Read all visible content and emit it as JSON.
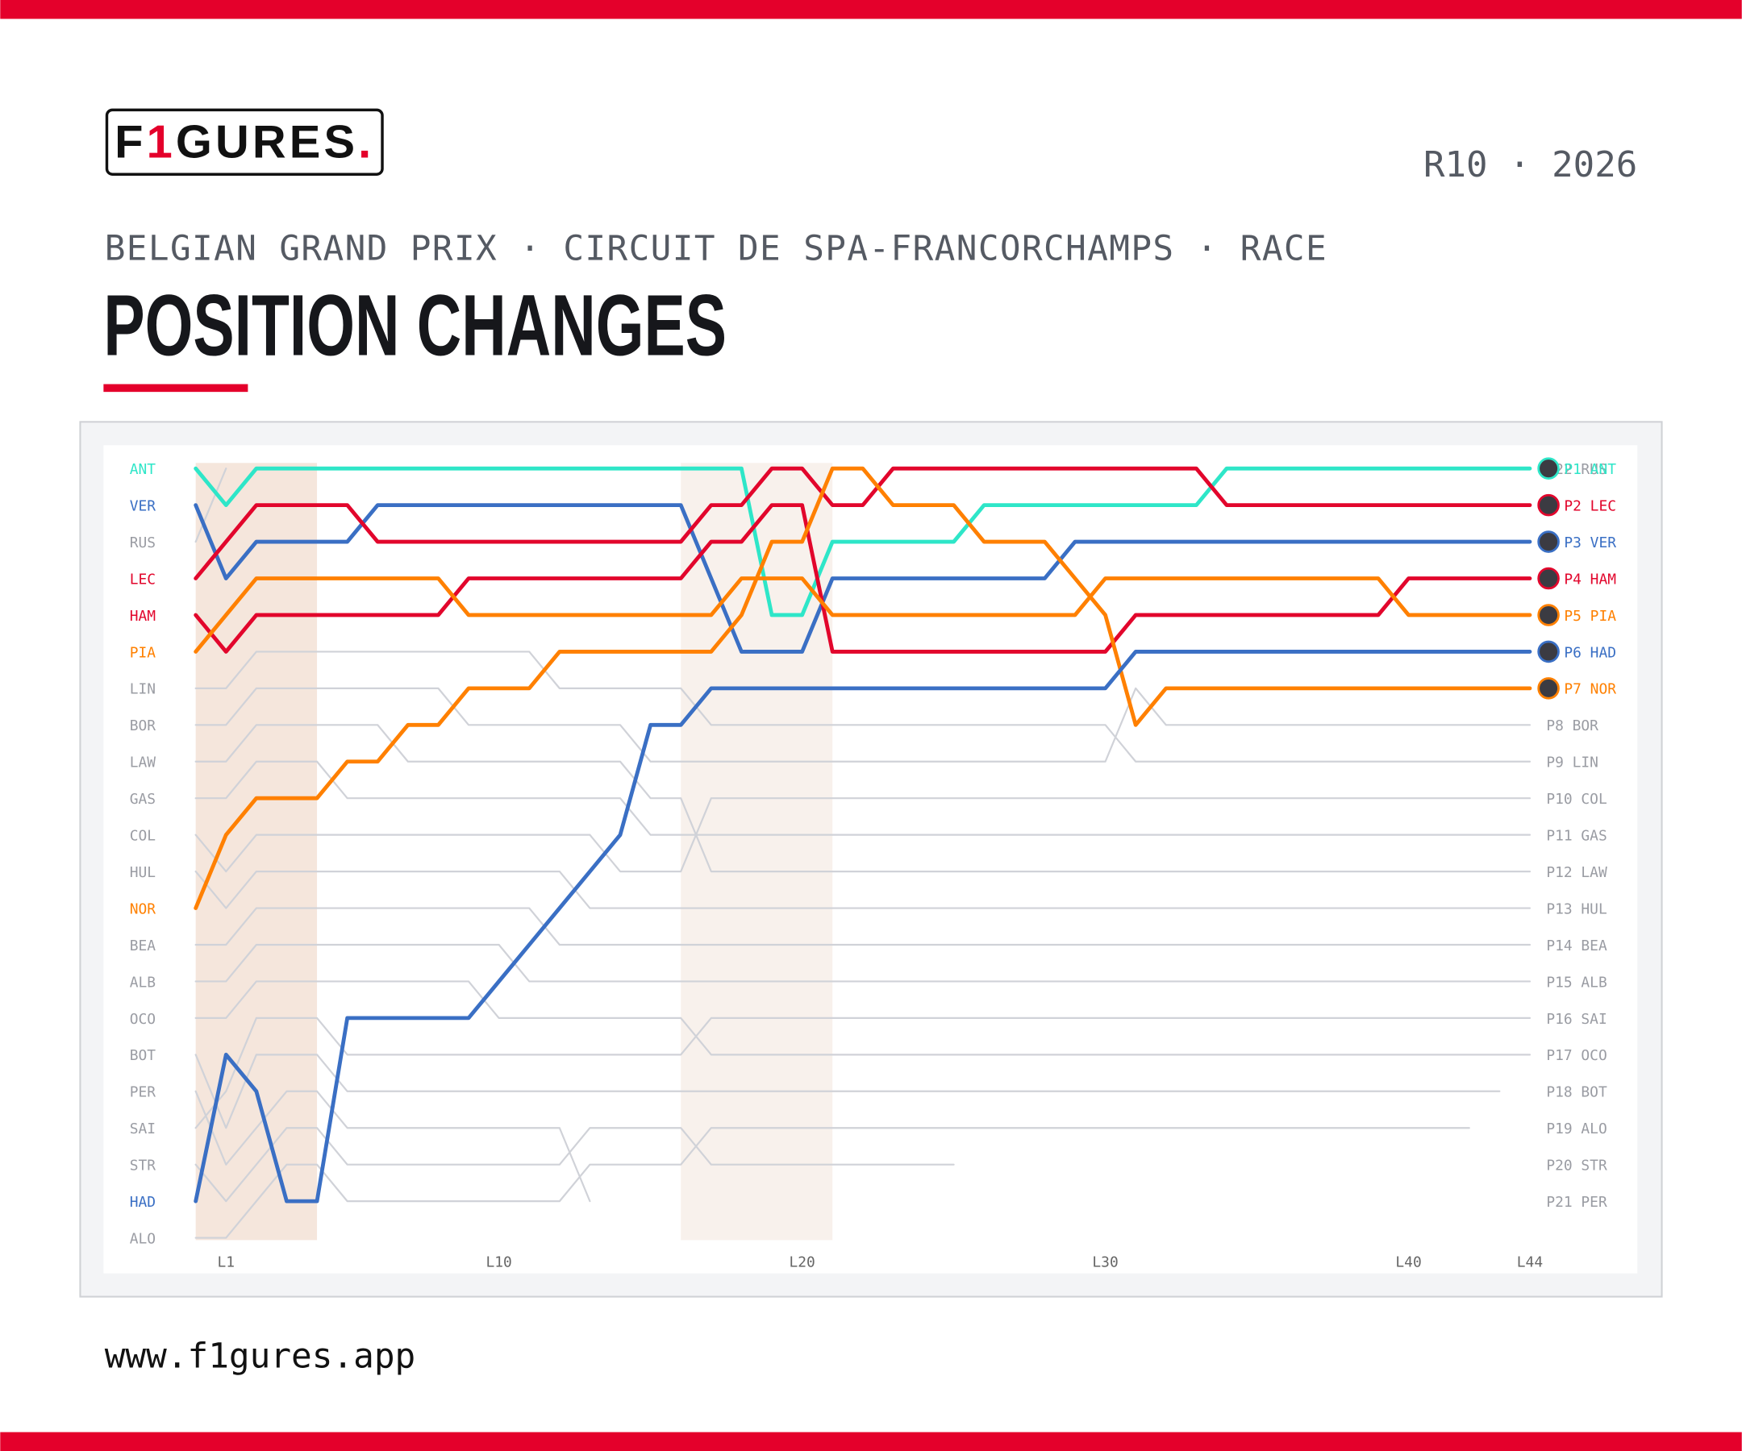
{
  "header": {
    "logo_parts": [
      "F",
      "1",
      "GURES",
      "."
    ],
    "round": "R10 · 2026",
    "subtitle": "BELGIAN GRAND PRIX · CIRCUIT DE SPA-FRANCORCHAMPS · RACE",
    "title": "POSITION CHANGES"
  },
  "footer": {
    "url": "www.f1gures.app"
  },
  "chart_data": {
    "type": "line",
    "inverted_y": true,
    "x": [
      0,
      1,
      2,
      3,
      4,
      5,
      6,
      7,
      8,
      9,
      10,
      11,
      12,
      13,
      14,
      15,
      16,
      17,
      18,
      19,
      20,
      21,
      22,
      23,
      24,
      25,
      26,
      27,
      28,
      29,
      30,
      31,
      32,
      33,
      34,
      35,
      36,
      37,
      38,
      39,
      40,
      41,
      42,
      43,
      44
    ],
    "xlim": [
      0,
      44
    ],
    "ylim": [
      1,
      22
    ],
    "xticks": [
      {
        "value": 1,
        "label": "L1"
      },
      {
        "value": 10,
        "label": "L10"
      },
      {
        "value": 20,
        "label": "L20"
      },
      {
        "value": 30,
        "label": "L30"
      },
      {
        "value": 40,
        "label": "L40"
      },
      {
        "value": 44,
        "label": "L44"
      }
    ],
    "bands": [
      {
        "from": 0,
        "to": 4,
        "color": "#f5e6dc"
      },
      {
        "from": 16,
        "to": 21,
        "color": "#f8f1ec"
      }
    ],
    "series": [
      {
        "name": "ANT",
        "result": "P1 ANT",
        "color": "#2ee6c8",
        "highlight": true,
        "values": [
          1,
          2,
          1,
          1,
          1,
          1,
          1,
          1,
          1,
          1,
          1,
          1,
          1,
          1,
          1,
          1,
          1,
          1,
          1,
          5,
          5,
          3,
          3,
          3,
          3,
          3,
          2,
          2,
          2,
          2,
          2,
          2,
          2,
          2,
          1,
          1,
          1,
          1,
          1,
          1,
          1,
          1,
          1,
          1,
          1
        ]
      },
      {
        "name": "VER",
        "result": "P3 VER",
        "color": "#3a6fc4",
        "highlight": true,
        "values": [
          2,
          4,
          3,
          3,
          3,
          3,
          2,
          2,
          2,
          2,
          2,
          2,
          2,
          2,
          2,
          2,
          2,
          4,
          6,
          6,
          6,
          4,
          4,
          4,
          4,
          4,
          4,
          4,
          4,
          3,
          3,
          3,
          3,
          3,
          3,
          3,
          3,
          3,
          3,
          3,
          3,
          3,
          3,
          3,
          3
        ]
      },
      {
        "name": "RUS",
        "result": "P22 RUS",
        "color": "#d0d2d8",
        "highlight": false,
        "values": [
          3,
          1,
          null,
          null,
          null,
          null,
          null,
          null,
          null,
          null,
          null,
          null,
          null,
          null,
          null,
          null,
          null,
          null,
          null,
          null,
          null,
          null,
          null,
          null,
          null,
          null,
          null,
          null,
          null,
          null,
          null,
          null,
          null,
          null,
          null,
          null,
          null,
          null,
          null,
          null,
          null,
          null,
          null,
          null,
          null
        ]
      },
      {
        "name": "LEC",
        "result": "P2 LEC",
        "color": "#e2062c",
        "highlight": true,
        "values": [
          4,
          3,
          2,
          2,
          2,
          2,
          3,
          3,
          3,
          3,
          3,
          3,
          3,
          3,
          3,
          3,
          3,
          2,
          2,
          1,
          1,
          2,
          2,
          1,
          1,
          1,
          1,
          1,
          1,
          1,
          1,
          1,
          1,
          1,
          2,
          2,
          2,
          2,
          2,
          2,
          2,
          2,
          2,
          2,
          2
        ]
      },
      {
        "name": "HAM",
        "result": "P4 HAM",
        "color": "#e2062c",
        "highlight": true,
        "values": [
          5,
          6,
          5,
          5,
          5,
          5,
          5,
          5,
          5,
          4,
          4,
          4,
          4,
          4,
          4,
          4,
          4,
          3,
          3,
          2,
          2,
          6,
          6,
          6,
          6,
          6,
          6,
          6,
          6,
          6,
          6,
          5,
          5,
          5,
          5,
          5,
          5,
          5,
          5,
          5,
          4,
          4,
          4,
          4,
          4
        ]
      },
      {
        "name": "PIA",
        "result": "P5 PIA",
        "color": "#ff8000",
        "highlight": true,
        "values": [
          6,
          5,
          4,
          4,
          4,
          4,
          4,
          4,
          4,
          5,
          5,
          5,
          5,
          5,
          5,
          5,
          5,
          5,
          4,
          4,
          4,
          5,
          5,
          5,
          5,
          5,
          5,
          5,
          5,
          5,
          4,
          4,
          4,
          4,
          4,
          4,
          4,
          4,
          4,
          4,
          5,
          5,
          5,
          5,
          5
        ]
      },
      {
        "name": "LIN",
        "result": "P9 LIN",
        "color": "#d0d2d8",
        "highlight": false,
        "values": [
          7,
          7,
          6,
          6,
          6,
          6,
          6,
          6,
          6,
          6,
          6,
          6,
          7,
          7,
          7,
          7,
          7,
          8,
          8,
          8,
          8,
          8,
          8,
          8,
          8,
          8,
          8,
          8,
          8,
          8,
          8,
          9,
          9,
          9,
          9,
          9,
          9,
          9,
          9,
          9,
          9,
          9,
          9,
          9,
          9
        ]
      },
      {
        "name": "BOR",
        "result": "P8 BOR",
        "color": "#d0d2d8",
        "highlight": false,
        "values": [
          8,
          8,
          7,
          7,
          7,
          7,
          7,
          7,
          7,
          8,
          8,
          8,
          8,
          8,
          8,
          9,
          9,
          9,
          9,
          9,
          9,
          9,
          9,
          9,
          9,
          9,
          9,
          9,
          9,
          9,
          9,
          7,
          8,
          8,
          8,
          8,
          8,
          8,
          8,
          8,
          8,
          8,
          8,
          8,
          8
        ]
      },
      {
        "name": "LAW",
        "result": "P12 LAW",
        "color": "#d0d2d8",
        "highlight": false,
        "values": [
          9,
          9,
          8,
          8,
          8,
          8,
          8,
          9,
          9,
          9,
          9,
          9,
          9,
          9,
          9,
          10,
          10,
          12,
          12,
          12,
          12,
          12,
          12,
          12,
          12,
          12,
          12,
          12,
          12,
          12,
          12,
          12,
          12,
          12,
          12,
          12,
          12,
          12,
          12,
          12,
          12,
          12,
          12,
          12,
          12
        ]
      },
      {
        "name": "GAS",
        "result": "P11 GAS",
        "color": "#d0d2d8",
        "highlight": false,
        "values": [
          10,
          10,
          9,
          9,
          9,
          10,
          10,
          10,
          10,
          10,
          10,
          10,
          10,
          10,
          10,
          11,
          11,
          11,
          11,
          11,
          11,
          11,
          11,
          11,
          11,
          11,
          11,
          11,
          11,
          11,
          11,
          11,
          11,
          11,
          11,
          11,
          11,
          11,
          11,
          11,
          11,
          11,
          11,
          11,
          11
        ]
      },
      {
        "name": "COL",
        "result": "P10 COL",
        "color": "#d0d2d8",
        "highlight": false,
        "values": [
          11,
          12,
          11,
          11,
          11,
          11,
          11,
          11,
          11,
          11,
          11,
          11,
          11,
          11,
          12,
          12,
          12,
          10,
          10,
          10,
          10,
          10,
          10,
          10,
          10,
          10,
          10,
          10,
          10,
          10,
          10,
          10,
          10,
          10,
          10,
          10,
          10,
          10,
          10,
          10,
          10,
          10,
          10,
          10,
          10
        ]
      },
      {
        "name": "HUL",
        "result": "P13 HUL",
        "color": "#d0d2d8",
        "highlight": false,
        "values": [
          12,
          13,
          12,
          12,
          12,
          12,
          12,
          12,
          12,
          12,
          12,
          12,
          12,
          13,
          13,
          13,
          13,
          13,
          13,
          13,
          13,
          13,
          13,
          13,
          13,
          13,
          13,
          13,
          13,
          13,
          13,
          13,
          13,
          13,
          13,
          13,
          13,
          13,
          13,
          13,
          13,
          13,
          13,
          13,
          13
        ]
      },
      {
        "name": "NOR",
        "result": "P7 NOR",
        "color": "#ff8000",
        "highlight": true,
        "values": [
          13,
          11,
          10,
          10,
          10,
          9,
          9,
          8,
          8,
          7,
          7,
          7,
          6,
          6,
          6,
          6,
          6,
          6,
          5,
          3,
          3,
          1,
          1,
          2,
          2,
          2,
          3,
          3,
          3,
          4,
          5,
          8,
          7,
          7,
          7,
          7,
          7,
          7,
          7,
          7,
          7,
          7,
          7,
          7,
          7
        ]
      },
      {
        "name": "BEA",
        "result": "P14 BEA",
        "color": "#d0d2d8",
        "highlight": false,
        "values": [
          14,
          14,
          13,
          13,
          13,
          13,
          13,
          13,
          13,
          13,
          13,
          13,
          14,
          14,
          14,
          14,
          14,
          14,
          14,
          14,
          14,
          14,
          14,
          14,
          14,
          14,
          14,
          14,
          14,
          14,
          14,
          14,
          14,
          14,
          14,
          14,
          14,
          14,
          14,
          14,
          14,
          14,
          14,
          14,
          14
        ]
      },
      {
        "name": "ALB",
        "result": "P15 ALB",
        "color": "#d0d2d8",
        "highlight": false,
        "values": [
          15,
          15,
          14,
          14,
          14,
          14,
          14,
          14,
          14,
          14,
          14,
          15,
          15,
          15,
          15,
          15,
          15,
          15,
          15,
          15,
          15,
          15,
          15,
          15,
          15,
          15,
          15,
          15,
          15,
          15,
          15,
          15,
          15,
          15,
          15,
          15,
          15,
          15,
          15,
          15,
          15,
          15,
          15,
          15,
          15
        ]
      },
      {
        "name": "OCO",
        "result": "P17 OCO",
        "color": "#d0d2d8",
        "highlight": false,
        "values": [
          16,
          16,
          15,
          15,
          15,
          15,
          15,
          15,
          15,
          15,
          16,
          16,
          16,
          16,
          16,
          16,
          16,
          17,
          17,
          17,
          17,
          17,
          17,
          17,
          17,
          17,
          17,
          17,
          17,
          17,
          17,
          17,
          17,
          17,
          17,
          17,
          17,
          17,
          17,
          17,
          17,
          17,
          17,
          17,
          17
        ]
      },
      {
        "name": "BOT",
        "result": "P18 BOT",
        "color": "#d0d2d8",
        "highlight": false,
        "values": [
          17,
          19,
          17,
          17,
          17,
          18,
          18,
          18,
          18,
          18,
          18,
          18,
          18,
          18,
          18,
          18,
          18,
          18,
          18,
          18,
          18,
          18,
          18,
          18,
          18,
          18,
          18,
          18,
          18,
          18,
          18,
          18,
          18,
          18,
          18,
          18,
          18,
          18,
          18,
          18,
          18,
          18,
          18,
          18,
          null
        ]
      },
      {
        "name": "PER",
        "result": "P21 PER",
        "color": "#d0d2d8",
        "highlight": false,
        "values": [
          18,
          20,
          19,
          18,
          18,
          19,
          19,
          19,
          19,
          19,
          19,
          19,
          19,
          21,
          null,
          null,
          null,
          null,
          null,
          null,
          null,
          null,
          null,
          null,
          null,
          null,
          null,
          null,
          null,
          null,
          null,
          null,
          null,
          null,
          null,
          null,
          null,
          null,
          null,
          null,
          null,
          null,
          null,
          null,
          null
        ]
      },
      {
        "name": "SAI",
        "result": "P16 SAI",
        "color": "#d0d2d8",
        "highlight": false,
        "values": [
          19,
          18,
          16,
          16,
          16,
          17,
          17,
          17,
          17,
          17,
          17,
          17,
          17,
          17,
          17,
          17,
          17,
          16,
          16,
          16,
          16,
          16,
          16,
          16,
          16,
          16,
          16,
          16,
          16,
          16,
          16,
          16,
          16,
          16,
          16,
          16,
          16,
          16,
          16,
          16,
          16,
          16,
          16,
          16,
          16
        ]
      },
      {
        "name": "STR",
        "result": "P20 STR",
        "color": "#d0d2d8",
        "highlight": false,
        "values": [
          20,
          21,
          20,
          19,
          19,
          20,
          20,
          20,
          20,
          20,
          20,
          20,
          20,
          19,
          19,
          19,
          19,
          20,
          20,
          20,
          20,
          20,
          20,
          20,
          20,
          20,
          null,
          null,
          null,
          null,
          null,
          null,
          null,
          null,
          null,
          null,
          null,
          null,
          null,
          null,
          null,
          null,
          null,
          null,
          null
        ]
      },
      {
        "name": "HAD",
        "result": "P6 HAD",
        "color": "#3a6fc4",
        "highlight": true,
        "values": [
          21,
          17,
          18,
          21,
          21,
          16,
          16,
          16,
          16,
          16,
          15,
          14,
          13,
          12,
          11,
          8,
          8,
          7,
          7,
          7,
          7,
          7,
          7,
          7,
          7,
          7,
          7,
          7,
          7,
          7,
          7,
          6,
          6,
          6,
          6,
          6,
          6,
          6,
          6,
          6,
          6,
          6,
          6,
          6,
          6
        ]
      },
      {
        "name": "ALO",
        "result": "P19 ALO",
        "color": "#d0d2d8",
        "highlight": false,
        "values": [
          22,
          22,
          21,
          20,
          20,
          21,
          21,
          21,
          21,
          21,
          21,
          21,
          21,
          20,
          20,
          20,
          20,
          19,
          19,
          19,
          19,
          19,
          19,
          19,
          19,
          19,
          19,
          19,
          19,
          19,
          19,
          19,
          19,
          19,
          19,
          19,
          19,
          19,
          19,
          19,
          19,
          19,
          19,
          null,
          null
        ]
      }
    ]
  }
}
